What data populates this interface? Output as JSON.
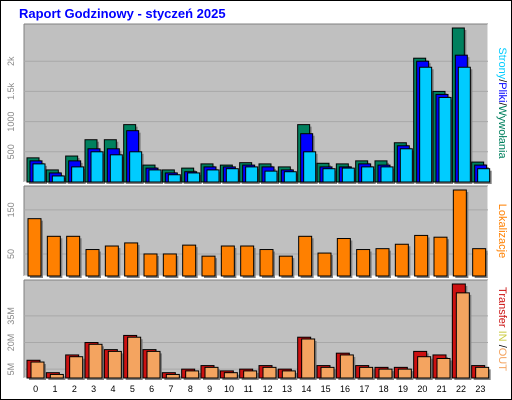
{
  "title": "Raport Godzinowy -  styczeń 2025",
  "chart_data": [
    {
      "type": "bar",
      "panel": "pages-files-hits",
      "categories": [
        "0",
        "1",
        "2",
        "3",
        "4",
        "5",
        "6",
        "7",
        "8",
        "9",
        "10",
        "11",
        "12",
        "13",
        "14",
        "15",
        "16",
        "17",
        "18",
        "19",
        "20",
        "21",
        "22",
        "23"
      ],
      "series": [
        {
          "name": "Strony",
          "color": "#00ccff",
          "values": [
            300,
            100,
            250,
            500,
            450,
            500,
            200,
            120,
            150,
            200,
            220,
            250,
            180,
            170,
            500,
            220,
            230,
            250,
            250,
            550,
            1900,
            1400,
            1900,
            220
          ]
        },
        {
          "name": "Pliki",
          "color": "#0000ff",
          "values": [
            350,
            150,
            350,
            550,
            550,
            850,
            230,
            150,
            170,
            250,
            250,
            280,
            250,
            200,
            800,
            250,
            250,
            300,
            280,
            600,
            2000,
            1450,
            2100,
            280
          ]
        },
        {
          "name": "Wywołania",
          "color": "#00805e",
          "values": [
            400,
            200,
            430,
            700,
            700,
            950,
            280,
            200,
            230,
            300,
            280,
            320,
            300,
            250,
            950,
            310,
            300,
            350,
            350,
            650,
            2050,
            1500,
            2550,
            330
          ]
        }
      ],
      "side_labels": [
        "Strony",
        "/",
        "Pliki",
        "/",
        "Wywołania"
      ],
      "yticks": [
        "2k",
        "1.5k",
        "1000",
        "500"
      ],
      "ytick_values": [
        2000,
        1500,
        1000,
        500
      ],
      "ylim": [
        0,
        2550
      ]
    },
    {
      "type": "bar",
      "panel": "visits",
      "categories": [
        "0",
        "1",
        "2",
        "3",
        "4",
        "5",
        "6",
        "7",
        "8",
        "9",
        "10",
        "11",
        "12",
        "13",
        "14",
        "15",
        "16",
        "17",
        "18",
        "19",
        "20",
        "21",
        "22",
        "23"
      ],
      "series": [
        {
          "name": "Lokalizacje",
          "color": "#ff8000",
          "values": [
            130,
            90,
            90,
            60,
            68,
            75,
            50,
            50,
            70,
            45,
            68,
            68,
            60,
            45,
            90,
            52,
            85,
            60,
            62,
            72,
            92,
            88,
            195,
            62
          ]
        }
      ],
      "side_labels": [
        "Lokalizacje"
      ],
      "yticks": [
        "150",
        "50"
      ],
      "ytick_values": [
        150,
        50
      ],
      "ylim": [
        0,
        195
      ]
    },
    {
      "type": "bar",
      "panel": "transfer",
      "categories": [
        "0",
        "1",
        "2",
        "3",
        "4",
        "5",
        "6",
        "7",
        "8",
        "9",
        "10",
        "11",
        "12",
        "13",
        "14",
        "15",
        "16",
        "17",
        "18",
        "19",
        "20",
        "21",
        "22",
        "23"
      ],
      "series": [
        {
          "name": "IN",
          "color": "#cc1111",
          "values": [
            10,
            3,
            13,
            20,
            16,
            24,
            16,
            3,
            5,
            7,
            4,
            5,
            7,
            5,
            23,
            7,
            14,
            7,
            6,
            6,
            15,
            13,
            53,
            7
          ]
        },
        {
          "name": "OUT",
          "color": "#f4a460",
          "values": [
            9,
            2,
            12,
            19,
            15,
            23,
            15,
            2,
            4,
            6,
            3,
            4,
            6,
            4,
            22,
            6,
            13,
            6,
            5,
            5,
            12,
            11,
            48,
            6
          ]
        }
      ],
      "side_labels": [
        "Transfer",
        " ",
        "IN",
        " ",
        "/",
        "OUT"
      ],
      "side_colors": [
        "#cc1111",
        "#000000",
        "#cccc44",
        "#000000",
        "#000000",
        "#f4a460"
      ],
      "yticks": [
        "35M",
        "20M",
        "5M"
      ],
      "ytick_values": [
        35,
        20,
        5
      ],
      "ylim": [
        0,
        53
      ]
    }
  ]
}
